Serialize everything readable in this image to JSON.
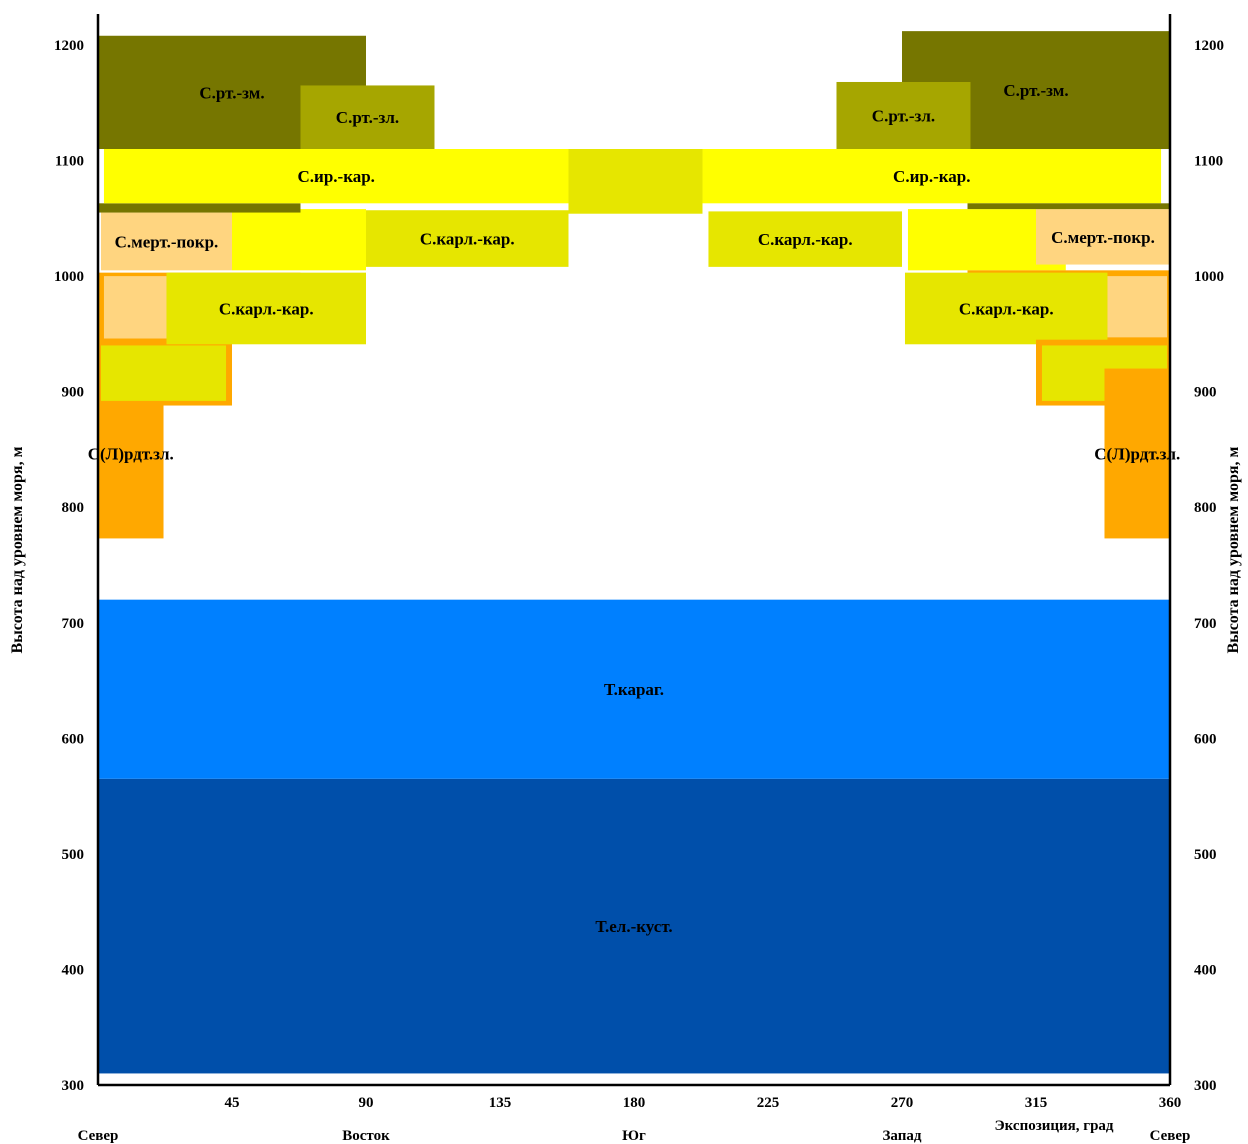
{
  "chart_data": {
    "type": "area",
    "title": "",
    "xlabel": "Экспозиция, град",
    "ylabel": "Высота над уровнем моря, м",
    "ylabel_right": "Высота над уровнем моря, м",
    "xlim": [
      0,
      360
    ],
    "ylim": [
      300,
      1200
    ],
    "x_ticks": [
      "45",
      "90",
      "135",
      "180",
      "225",
      "270",
      "315",
      "360"
    ],
    "y_ticks": [
      "300",
      "400",
      "500",
      "600",
      "700",
      "800",
      "900",
      "1000",
      "1100",
      "1200"
    ],
    "directions": [
      {
        "label": "Север",
        "x": 0
      },
      {
        "label": "Восток",
        "x": 90
      },
      {
        "label": "Юг",
        "x": 180
      },
      {
        "label": "Запад",
        "x": 270
      },
      {
        "label": "Север",
        "x": 360
      }
    ],
    "grid": false,
    "colors": {
      "dark_olive": "#767600",
      "olive": "#a6a600",
      "yellow": "#ffff00",
      "yellow_green": "#e6e600",
      "light_orange": "#ffd580",
      "orange": "#ffa800",
      "light_blue": "#0080ff",
      "dark_blue": "#004faa"
    },
    "zones": [
      {
        "label": "Т.ел.-куст.",
        "x": [
          0,
          360
        ],
        "y": [
          310,
          565
        ],
        "color": "#004faa"
      },
      {
        "label": "Т.караг.",
        "x": [
          0,
          360
        ],
        "y": [
          565,
          720
        ],
        "color": "#0080ff"
      },
      {
        "label": "С(Л)рдт.зл.",
        "x": [
          0,
          22
        ],
        "y": [
          773,
          920
        ],
        "color": "#ffa800"
      },
      {
        "label": "",
        "x": [
          0,
          45
        ],
        "y": [
          888,
          945
        ],
        "color": "#ffa800"
      },
      {
        "label": "",
        "x": [
          1,
          43
        ],
        "y": [
          892,
          940
        ],
        "color": "#e6e600"
      },
      {
        "label": "",
        "x": [
          0,
          68
        ],
        "y": [
          942,
          1003
        ],
        "color": "#ffa800"
      },
      {
        "label": "",
        "x": [
          2,
          23
        ],
        "y": [
          946,
          1000
        ],
        "color": "#ffd580"
      },
      {
        "label": "С.карл.-кар.",
        "x": [
          23,
          90
        ],
        "y": [
          941,
          1003
        ],
        "color": "#e6e600"
      },
      {
        "label": "С.мерт.-покр.",
        "x": [
          1,
          45
        ],
        "y": [
          1005,
          1055
        ],
        "color": "#ffd580"
      },
      {
        "label": "",
        "x": [
          45,
          90
        ],
        "y": [
          1005,
          1058
        ],
        "color": "#ffff00"
      },
      {
        "label": "С.карл.-кар.",
        "x": [
          90,
          158
        ],
        "y": [
          1008,
          1057
        ],
        "color": "#e6e600"
      },
      {
        "label": "",
        "x": [
          0,
          68
        ],
        "y": [
          1055,
          1063
        ],
        "color": "#767600"
      },
      {
        "label": "С.ир.-кар.",
        "x": [
          2,
          158
        ],
        "y": [
          1063,
          1110
        ],
        "color": "#ffff00"
      },
      {
        "label": "",
        "x": [
          158,
          203
        ],
        "y": [
          1054,
          1110
        ],
        "color": "#e6e600"
      },
      {
        "label": "С.ир.-кар.",
        "x": [
          203,
          357
        ],
        "y": [
          1063,
          1110
        ],
        "color": "#ffff00"
      },
      {
        "label": "С.рт.-зм.",
        "x": [
          0,
          90
        ],
        "y": [
          1110,
          1208
        ],
        "color": "#767600"
      },
      {
        "label": "С.рт.-зл.",
        "x": [
          68,
          113
        ],
        "y": [
          1110,
          1165
        ],
        "color": "#a6a600"
      },
      {
        "label": "С.карл.-кар.",
        "x": [
          205,
          270
        ],
        "y": [
          1008,
          1056
        ],
        "color": "#e6e600"
      },
      {
        "label": "",
        "x": [
          272,
          325
        ],
        "y": [
          1005,
          1058
        ],
        "color": "#ffff00"
      },
      {
        "label": "С.мерт.-покр.",
        "x": [
          315,
          360
        ],
        "y": [
          1010,
          1058
        ],
        "color": "#ffd580"
      },
      {
        "label": "",
        "x": [
          292,
          360
        ],
        "y": [
          942,
          1005
        ],
        "color": "#ffa800"
      },
      {
        "label": "С.карл.-кар.",
        "x": [
          271,
          339
        ],
        "y": [
          941,
          1003
        ],
        "color": "#e6e600"
      },
      {
        "label": "",
        "x": [
          339,
          359
        ],
        "y": [
          947,
          1000
        ],
        "color": "#ffd580"
      },
      {
        "label": "",
        "x": [
          315,
          360
        ],
        "y": [
          888,
          945
        ],
        "color": "#ffa800"
      },
      {
        "label": "",
        "x": [
          317,
          359
        ],
        "y": [
          892,
          940
        ],
        "color": "#e6e600"
      },
      {
        "label": "С(Л)рдт.зл.",
        "x": [
          338,
          360
        ],
        "y": [
          773,
          920
        ],
        "color": "#ffa800"
      },
      {
        "label": "",
        "x": [
          292,
          360
        ],
        "y": [
          1058,
          1063
        ],
        "color": "#767600"
      },
      {
        "label": "С.рт.-зм.",
        "x": [
          270,
          360
        ],
        "y": [
          1110,
          1212
        ],
        "color": "#767600"
      },
      {
        "label": "С.рт.-зл.",
        "x": [
          248,
          293
        ],
        "y": [
          1110,
          1168
        ],
        "color": "#a6a600"
      }
    ]
  }
}
